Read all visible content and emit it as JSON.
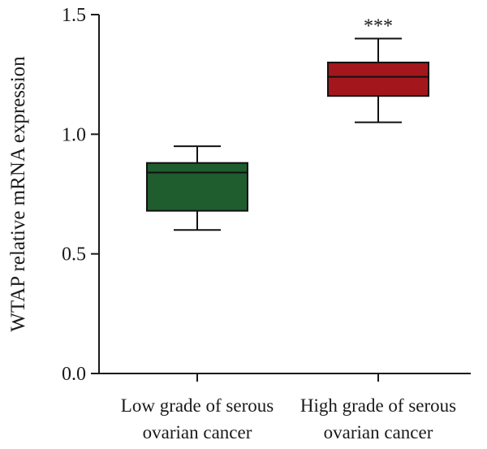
{
  "chart_data": {
    "type": "box",
    "ylabel": "WTAP relative mRNA expression",
    "xlabel": "",
    "ylim": [
      0.0,
      1.5
    ],
    "yticks": [
      0.0,
      0.5,
      1.0,
      1.5
    ],
    "ytick_labels": [
      "0.0",
      "0.5",
      "1.0",
      "1.5"
    ],
    "grid": false,
    "categories": [
      [
        "Low grade of serous",
        "ovarian cancer"
      ],
      [
        "High grade of serous",
        "ovarian cancer"
      ]
    ],
    "boxes": [
      {
        "whisker_low": 0.6,
        "q1": 0.68,
        "median": 0.84,
        "q3": 0.88,
        "whisker_high": 0.95,
        "color": "#1f5c2e",
        "annotation": ""
      },
      {
        "whisker_low": 1.05,
        "q1": 1.16,
        "median": 1.24,
        "q3": 1.3,
        "whisker_high": 1.4,
        "color": "#a3171c",
        "annotation": "***"
      }
    ]
  }
}
